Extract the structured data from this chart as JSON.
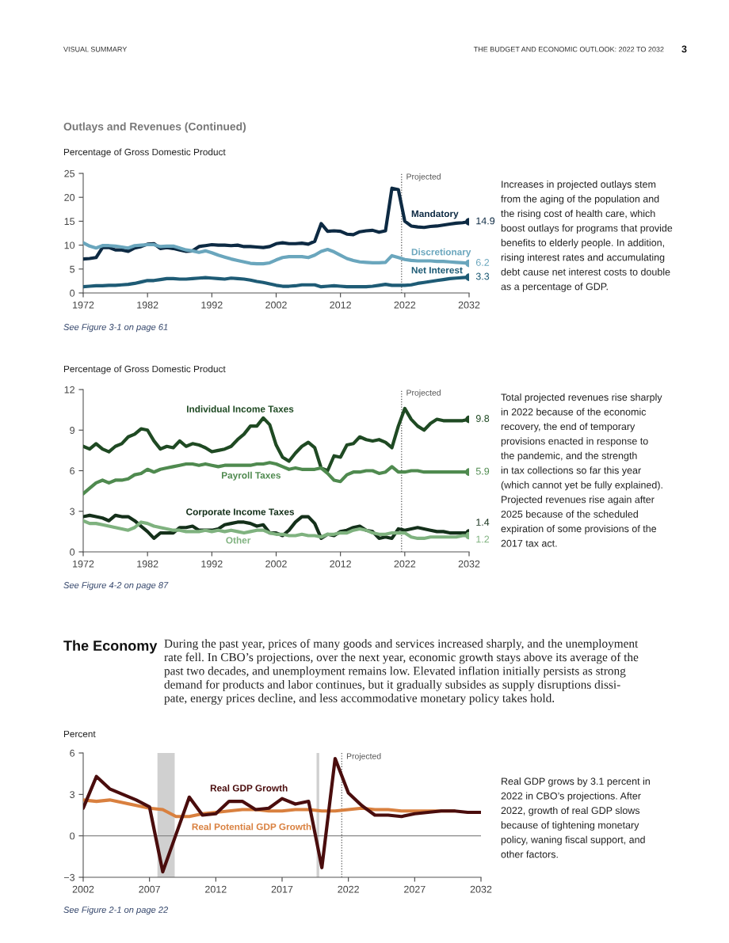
{
  "chart_data": [
    {
      "type": "line",
      "ylabel": "Percentage of Gross Domestic Product",
      "annotations": [
        "VISUAL SUMMARY",
        "THE BUDGET AND ECONOMIC OUTLOOK: 2022 TO 2032",
        "3",
        "Outlays and Revenues (Continued)",
        "Increases in projected outlays stem\nfrom the aging of the population and\nthe rising cost of health care, which\nboost outlays for programs that provide\nbenefits to elderly people. In addition,\nrising interest rates and accumulating\ndebt cause net interest costs to double\nas a percentage of GDP.",
        "See Figure 3-1 on page 61"
      ],
      "x": [
        1972,
        1973,
        1974,
        1975,
        1976,
        1977,
        1978,
        1979,
        1980,
        1981,
        1982,
        1983,
        1984,
        1985,
        1986,
        1987,
        1988,
        1989,
        1990,
        1991,
        1992,
        1993,
        1994,
        1995,
        1996,
        1997,
        1998,
        1999,
        2000,
        2001,
        2002,
        2003,
        2004,
        2005,
        2006,
        2007,
        2008,
        2009,
        2010,
        2011,
        2012,
        2013,
        2014,
        2015,
        2016,
        2017,
        2018,
        2019,
        2020,
        2021,
        2022,
        2023,
        2024,
        2025,
        2026,
        2027,
        2028,
        2029,
        2030,
        2031,
        2032
      ],
      "series": [
        {
          "name": "Mandatory",
          "color": "#0d2a43",
          "values": [
            7.1,
            7.2,
            7.4,
            9.5,
            9.5,
            9.0,
            9.0,
            8.7,
            9.4,
            9.7,
            10.2,
            10.3,
            9.3,
            9.5,
            9.3,
            9.0,
            8.7,
            8.8,
            9.7,
            9.9,
            10.1,
            10.0,
            10.0,
            9.9,
            10.0,
            9.7,
            9.7,
            9.6,
            9.5,
            9.7,
            10.3,
            10.5,
            10.3,
            10.3,
            10.4,
            10.2,
            10.8,
            14.5,
            12.9,
            13.0,
            12.9,
            12.3,
            12.2,
            12.8,
            13.0,
            13.1,
            12.7,
            13.0,
            21.9,
            21.6,
            15.0,
            14.0,
            13.8,
            13.7,
            13.9,
            14.0,
            14.2,
            14.4,
            14.6,
            14.7,
            14.9
          ],
          "value_labels": [
            null,
            null,
            null,
            null,
            null,
            null,
            null,
            null,
            null,
            null,
            null,
            null,
            null,
            null,
            null,
            null,
            null,
            null,
            null,
            null,
            null,
            null,
            null,
            null,
            null,
            null,
            null,
            null,
            null,
            null,
            null,
            null,
            null,
            null,
            null,
            null,
            null,
            null,
            null,
            null,
            null,
            null,
            null,
            null,
            null,
            null,
            null,
            null,
            null,
            null,
            null,
            null,
            null,
            null,
            null,
            null,
            null,
            null,
            null,
            null,
            "14.9"
          ]
        },
        {
          "name": "Discretionary",
          "color": "#6aa6bd",
          "values": [
            10.5,
            9.8,
            9.4,
            9.9,
            9.9,
            9.8,
            9.6,
            9.4,
            9.9,
            10.0,
            10.1,
            10.1,
            9.7,
            9.8,
            9.8,
            9.4,
            9.0,
            8.8,
            8.5,
            8.8,
            8.4,
            7.9,
            7.5,
            7.1,
            6.8,
            6.5,
            6.2,
            6.1,
            6.1,
            6.3,
            6.9,
            7.4,
            7.6,
            7.6,
            7.6,
            7.4,
            7.9,
            8.7,
            9.1,
            8.6,
            7.9,
            7.2,
            6.8,
            6.5,
            6.4,
            6.3,
            6.3,
            6.4,
            7.8,
            7.4,
            7.0,
            6.8,
            6.7,
            6.7,
            6.7,
            6.6,
            6.6,
            6.5,
            6.4,
            6.3,
            6.2
          ],
          "value_labels": [
            null,
            null,
            null,
            null,
            null,
            null,
            null,
            null,
            null,
            null,
            null,
            null,
            null,
            null,
            null,
            null,
            null,
            null,
            null,
            null,
            null,
            null,
            null,
            null,
            null,
            null,
            null,
            null,
            null,
            null,
            null,
            null,
            null,
            null,
            null,
            null,
            null,
            null,
            null,
            null,
            null,
            null,
            null,
            null,
            null,
            null,
            null,
            null,
            null,
            null,
            null,
            null,
            null,
            null,
            null,
            null,
            null,
            null,
            null,
            null,
            "6.2"
          ]
        },
        {
          "name": "Net Interest",
          "color": "#1e5b75",
          "values": [
            1.3,
            1.4,
            1.5,
            1.5,
            1.6,
            1.6,
            1.7,
            1.8,
            2.0,
            2.3,
            2.6,
            2.6,
            2.8,
            3.0,
            3.0,
            2.9,
            2.9,
            3.0,
            3.1,
            3.2,
            3.1,
            3.0,
            2.9,
            3.1,
            3.0,
            2.9,
            2.7,
            2.4,
            2.2,
            1.9,
            1.6,
            1.4,
            1.4,
            1.5,
            1.7,
            1.7,
            1.7,
            1.3,
            1.4,
            1.5,
            1.4,
            1.3,
            1.3,
            1.3,
            1.3,
            1.4,
            1.6,
            1.8,
            1.6,
            1.6,
            1.6,
            1.7,
            2.0,
            2.2,
            2.4,
            2.6,
            2.8,
            3.0,
            3.1,
            3.2,
            3.3
          ],
          "value_labels": [
            null,
            null,
            null,
            null,
            null,
            null,
            null,
            null,
            null,
            null,
            null,
            null,
            null,
            null,
            null,
            null,
            null,
            null,
            null,
            null,
            null,
            null,
            null,
            null,
            null,
            null,
            null,
            null,
            null,
            null,
            null,
            null,
            null,
            null,
            null,
            null,
            null,
            null,
            null,
            null,
            null,
            null,
            null,
            null,
            null,
            null,
            null,
            null,
            null,
            null,
            null,
            null,
            null,
            null,
            null,
            null,
            null,
            null,
            null,
            null,
            "3.3"
          ]
        }
      ],
      "xlim": [
        1972,
        2032
      ],
      "xticks": [
        1972,
        1982,
        1992,
        2002,
        2012,
        2022,
        2032
      ],
      "ylim": [
        0,
        25
      ],
      "yticks": [
        0,
        5,
        10,
        15,
        20,
        25
      ],
      "ref_lines": [
        {
          "axis": "x",
          "value": 2021.5,
          "label": "Projected",
          "color": "#555555",
          "line_style": "dotted"
        }
      ]
    },
    {
      "type": "line",
      "ylabel": "Percentage of Gross Domestic Product",
      "annotations": [
        "Total projected revenues rise sharply\nin 2022 because of the economic\nrecovery, the end of temporary\nprovisions enacted in response to\nthe pandemic, and the strength\nin tax collections so far this year\n(which cannot yet be fully explained).\nProjected revenues rise again after\n2025 because of the scheduled\nexpiration of some provisions of the\n2017 tax act.",
        "See Figure 4-2 on page 87"
      ],
      "x": [
        1972,
        1973,
        1974,
        1975,
        1976,
        1977,
        1978,
        1979,
        1980,
        1981,
        1982,
        1983,
        1984,
        1985,
        1986,
        1987,
        1988,
        1989,
        1990,
        1991,
        1992,
        1993,
        1994,
        1995,
        1996,
        1997,
        1998,
        1999,
        2000,
        2001,
        2002,
        2003,
        2004,
        2005,
        2006,
        2007,
        2008,
        2009,
        2010,
        2011,
        2012,
        2013,
        2014,
        2015,
        2016,
        2017,
        2018,
        2019,
        2020,
        2021,
        2022,
        2023,
        2024,
        2025,
        2026,
        2027,
        2028,
        2029,
        2030,
        2031,
        2032
      ],
      "series": [
        {
          "name": "Individual Income Taxes",
          "color": "#1f4a23",
          "values": [
            7.8,
            7.6,
            8.0,
            7.6,
            7.4,
            7.8,
            8.0,
            8.5,
            8.7,
            9.1,
            9.0,
            8.2,
            7.6,
            7.8,
            7.7,
            8.2,
            7.8,
            8.0,
            7.9,
            7.7,
            7.4,
            7.5,
            7.6,
            7.8,
            8.3,
            8.7,
            9.3,
            9.3,
            9.9,
            9.4,
            7.9,
            7.0,
            6.7,
            7.3,
            7.8,
            8.1,
            7.7,
            6.2,
            6.0,
            7.1,
            7.0,
            7.9,
            8.0,
            8.5,
            8.3,
            8.2,
            8.3,
            8.1,
            7.7,
            9.3,
            10.6,
            9.8,
            9.3,
            9.0,
            9.5,
            9.8,
            9.7,
            9.7,
            9.7,
            9.7,
            9.8
          ],
          "value_labels": [
            null,
            null,
            null,
            null,
            null,
            null,
            null,
            null,
            null,
            null,
            null,
            null,
            null,
            null,
            null,
            null,
            null,
            null,
            null,
            null,
            null,
            null,
            null,
            null,
            null,
            null,
            null,
            null,
            null,
            null,
            null,
            null,
            null,
            null,
            null,
            null,
            null,
            null,
            null,
            null,
            null,
            null,
            null,
            null,
            null,
            null,
            null,
            null,
            null,
            null,
            null,
            null,
            null,
            null,
            null,
            null,
            null,
            null,
            null,
            null,
            "9.8"
          ]
        },
        {
          "name": "Payroll Taxes",
          "color": "#4f8a4f",
          "values": [
            4.3,
            4.7,
            5.1,
            5.3,
            5.1,
            5.3,
            5.3,
            5.4,
            5.7,
            5.8,
            6.1,
            5.9,
            6.1,
            6.2,
            6.3,
            6.4,
            6.5,
            6.5,
            6.4,
            6.5,
            6.4,
            6.3,
            6.4,
            6.4,
            6.4,
            6.4,
            6.4,
            6.5,
            6.5,
            6.6,
            6.5,
            6.3,
            6.1,
            6.2,
            6.1,
            6.1,
            6.1,
            6.2,
            5.8,
            5.3,
            5.2,
            5.7,
            5.9,
            5.9,
            6.0,
            6.0,
            5.8,
            5.9,
            6.3,
            5.9,
            5.9,
            6.0,
            6.0,
            5.9,
            5.9,
            5.9,
            5.9,
            5.9,
            5.9,
            5.9,
            5.9
          ],
          "value_labels": [
            null,
            null,
            null,
            null,
            null,
            null,
            null,
            null,
            null,
            null,
            null,
            null,
            null,
            null,
            null,
            null,
            null,
            null,
            null,
            null,
            null,
            null,
            null,
            null,
            null,
            null,
            null,
            null,
            null,
            null,
            null,
            null,
            null,
            null,
            null,
            null,
            null,
            null,
            null,
            null,
            null,
            null,
            null,
            null,
            null,
            null,
            null,
            null,
            null,
            null,
            null,
            null,
            null,
            null,
            null,
            null,
            null,
            null,
            null,
            null,
            "5.9"
          ]
        },
        {
          "name": "Corporate Income Taxes",
          "color": "#14301a",
          "values": [
            2.6,
            2.7,
            2.6,
            2.5,
            2.3,
            2.7,
            2.6,
            2.6,
            2.3,
            1.9,
            1.5,
            1.0,
            1.4,
            1.4,
            1.4,
            1.8,
            1.8,
            1.9,
            1.6,
            1.6,
            1.6,
            1.7,
            2.0,
            2.1,
            2.2,
            2.2,
            2.1,
            1.9,
            2.0,
            1.4,
            1.4,
            1.2,
            1.6,
            2.2,
            2.6,
            2.6,
            2.1,
            1.0,
            1.3,
            1.2,
            1.5,
            1.6,
            1.8,
            1.9,
            1.6,
            1.5,
            1.0,
            1.1,
            1.0,
            1.7,
            1.6,
            1.7,
            1.8,
            1.7,
            1.6,
            1.5,
            1.5,
            1.4,
            1.4,
            1.4,
            1.4
          ],
          "value_labels": [
            null,
            null,
            null,
            null,
            null,
            null,
            null,
            null,
            null,
            null,
            null,
            null,
            null,
            null,
            null,
            null,
            null,
            null,
            null,
            null,
            null,
            null,
            null,
            null,
            null,
            null,
            null,
            null,
            null,
            null,
            null,
            null,
            null,
            null,
            null,
            null,
            null,
            null,
            null,
            null,
            null,
            null,
            null,
            null,
            null,
            null,
            null,
            null,
            null,
            null,
            null,
            null,
            null,
            null,
            null,
            null,
            null,
            null,
            null,
            null,
            "1.4"
          ]
        },
        {
          "name": "Other",
          "color": "#7fb27f",
          "values": [
            2.3,
            2.1,
            2.1,
            2.0,
            1.9,
            1.8,
            1.7,
            1.6,
            1.8,
            2.2,
            2.1,
            1.9,
            1.8,
            1.7,
            1.6,
            1.6,
            1.5,
            1.5,
            1.5,
            1.6,
            1.5,
            1.6,
            1.5,
            1.6,
            1.5,
            1.4,
            1.5,
            1.6,
            1.6,
            1.4,
            1.3,
            1.3,
            1.2,
            1.2,
            1.3,
            1.2,
            1.2,
            1.1,
            1.3,
            1.3,
            1.4,
            1.4,
            1.6,
            1.7,
            1.6,
            1.4,
            1.3,
            1.3,
            1.4,
            1.4,
            1.4,
            1.1,
            1.0,
            1.0,
            1.1,
            1.1,
            1.1,
            1.1,
            1.1,
            1.2,
            1.2
          ],
          "value_labels": [
            null,
            null,
            null,
            null,
            null,
            null,
            null,
            null,
            null,
            null,
            null,
            null,
            null,
            null,
            null,
            null,
            null,
            null,
            null,
            null,
            null,
            null,
            null,
            null,
            null,
            null,
            null,
            null,
            null,
            null,
            null,
            null,
            null,
            null,
            null,
            null,
            null,
            null,
            null,
            null,
            null,
            null,
            null,
            null,
            null,
            null,
            null,
            null,
            null,
            null,
            null,
            null,
            null,
            null,
            null,
            null,
            null,
            null,
            null,
            null,
            "1.2"
          ]
        }
      ],
      "xlim": [
        1972,
        2032
      ],
      "xticks": [
        1972,
        1982,
        1992,
        2002,
        2012,
        2022,
        2032
      ],
      "ylim": [
        0,
        12
      ],
      "yticks": [
        0,
        3,
        6,
        9,
        12
      ],
      "ref_lines": [
        {
          "axis": "x",
          "value": 2021.5,
          "label": "Projected",
          "color": "#555555",
          "line_style": "dotted"
        }
      ]
    },
    {
      "type": "line",
      "ylabel": "Percent",
      "annotations": [
        "The Economy",
        "During the past year, prices of many goods and services increased sharply, and the unemployment\nrate fell. In CBO’s projections, over the next year, economic growth stays above its average of the\npast two decades, and unemployment remains low. Elevated inflation initially persists as strong\ndemand for products and labor continues, but it gradually subsides as supply disruptions dissi-\npate, energy prices decline, and less accommodative monetary policy takes hold.",
        "Real GDP grows by 3.1 percent in\n2022 in CBO’s projections. After\n2022, growth of real GDP slows\nbecause of tightening monetary\npolicy, waning fiscal support, and\nother factors.",
        "See Figure 2-1 on page 22"
      ],
      "x": [
        2002,
        2003,
        2004,
        2005,
        2006,
        2007,
        2008,
        2009,
        2010,
        2011,
        2012,
        2013,
        2014,
        2015,
        2016,
        2017,
        2018,
        2019,
        2020,
        2021,
        2022,
        2023,
        2024,
        2025,
        2026,
        2027,
        2028,
        2029,
        2030,
        2031,
        2032
      ],
      "series": [
        {
          "name": "Real Potential GDP Growth",
          "color": "#d9803f",
          "values": [
            2.6,
            2.5,
            2.6,
            2.4,
            2.2,
            2.0,
            1.9,
            1.4,
            1.4,
            1.6,
            1.7,
            1.8,
            1.9,
            1.9,
            1.8,
            1.8,
            1.9,
            1.9,
            1.8,
            1.8,
            1.9,
            2.0,
            1.9,
            1.9,
            1.8,
            1.8,
            1.8,
            1.8,
            1.8,
            null,
            null
          ]
        },
        {
          "name": "Real GDP Growth",
          "color": "#4a0d0d",
          "values": [
            2.0,
            4.3,
            3.4,
            3.0,
            2.6,
            2.1,
            -2.6,
            0.1,
            2.8,
            1.5,
            1.6,
            2.5,
            2.5,
            1.9,
            2.0,
            2.7,
            2.3,
            2.5,
            -2.3,
            5.6,
            3.1,
            2.2,
            1.5,
            1.5,
            1.4,
            1.6,
            1.7,
            1.8,
            1.8,
            1.7,
            1.7
          ]
        }
      ],
      "xlim": [
        2002,
        2032
      ],
      "xticks": [
        2002,
        2007,
        2012,
        2017,
        2022,
        2027,
        2032
      ],
      "ylim": [
        -3,
        6
      ],
      "yticks": [
        {
          "value": -3,
          "label": "−3"
        },
        0,
        3,
        6
      ],
      "ref_lines": [
        {
          "axis": "y",
          "value": 0,
          "label": null,
          "color": "#888888",
          "line_style": "solid"
        },
        {
          "axis": "x",
          "value": 2021.5,
          "label": "Projected",
          "color": "#555555",
          "line_style": "dotted"
        }
      ],
      "bands": [
        {
          "axis": "x",
          "from": 2007.6,
          "to": 2008.9,
          "label": null,
          "color": "#d0d0d0"
        },
        {
          "axis": "x",
          "from": 2019.6,
          "to": 2019.8,
          "label": null,
          "color": "#d0d0d0"
        }
      ]
    }
  ]
}
